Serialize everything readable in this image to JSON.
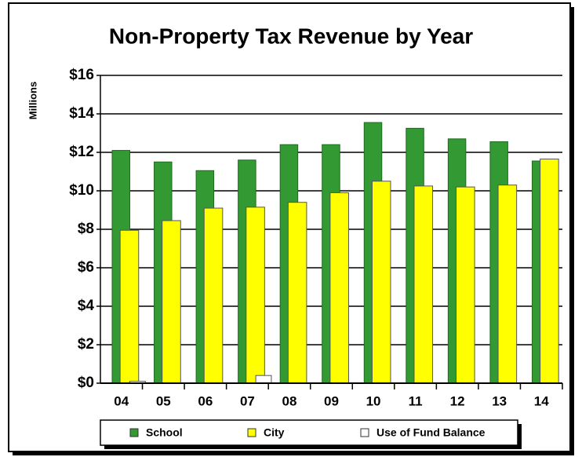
{
  "chart_data": {
    "type": "bar",
    "title": "Non-Property Tax Revenue by Year",
    "ylabel": "Millions",
    "categories": [
      "04",
      "05",
      "06",
      "07",
      "08",
      "09",
      "10",
      "11",
      "12",
      "13",
      "14"
    ],
    "series": [
      {
        "name": "School",
        "color": "#339933",
        "values": [
          12.1,
          11.5,
          11.05,
          11.6,
          12.4,
          12.4,
          13.55,
          13.25,
          12.7,
          12.55,
          11.55
        ]
      },
      {
        "name": "City",
        "color": "#ffff00",
        "values": [
          7.95,
          8.45,
          9.1,
          9.15,
          9.4,
          9.9,
          10.5,
          10.25,
          10.2,
          10.3,
          11.65
        ]
      },
      {
        "name": "Use of Fund Balance",
        "color": "#ffffff",
        "values": [
          0.1,
          0,
          0,
          0.4,
          0,
          0,
          0,
          0,
          0,
          0,
          0
        ]
      }
    ],
    "ylim": [
      0,
      16
    ],
    "yticks": [
      {
        "value": 0,
        "label": "$0"
      },
      {
        "value": 2,
        "label": "$2"
      },
      {
        "value": 4,
        "label": "$4"
      },
      {
        "value": 6,
        "label": "$6"
      },
      {
        "value": 8,
        "label": "$8"
      },
      {
        "value": 10,
        "label": "$10"
      },
      {
        "value": 12,
        "label": "$12"
      },
      {
        "value": 14,
        "label": "$14"
      },
      {
        "value": 16,
        "label": "$16"
      }
    ],
    "grid": true,
    "legend": "bottom"
  }
}
